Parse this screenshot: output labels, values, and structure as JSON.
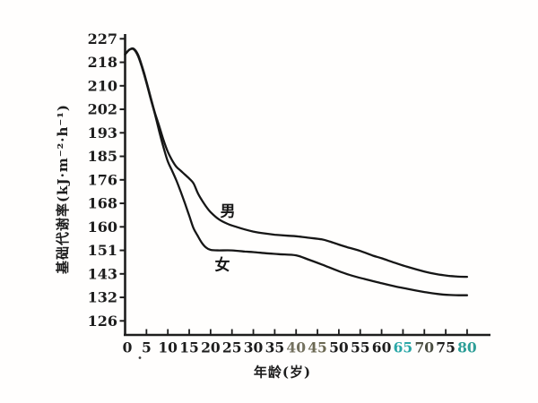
{
  "figure": {
    "background": "#fffefd",
    "ink": "#1d1d1d",
    "curve_color": "#161616"
  },
  "chart_data": {
    "type": "line",
    "title": "",
    "xlabel": "年龄(岁)",
    "ylabel": "基础代谢率(kJ·m⁻²·h⁻¹)",
    "x_ticks": [
      0,
      5,
      10,
      15,
      20,
      25,
      30,
      35,
      40,
      45,
      50,
      55,
      60,
      65,
      70,
      75,
      80
    ],
    "y_ticks": [
      227,
      218,
      210,
      202,
      193,
      185,
      176,
      168,
      160,
      151,
      143,
      132,
      126
    ],
    "xlim": [
      0,
      85
    ],
    "grid": false,
    "legend_position": "inline-curve-labels",
    "axis_note": "y tick values are unevenly spaced in value but evenly spaced along the axis (scanned textbook figure)",
    "x_tick_colors": {
      "40": "#73705e",
      "45": "#6b6852",
      "65": "#2aa7a7",
      "70": "#4c4f43",
      "80": "#2d9e97"
    },
    "series": [
      {
        "name": "男",
        "ages": [
          0,
          1,
          2,
          3,
          4,
          5,
          6,
          7,
          8,
          9,
          10,
          11,
          12,
          13,
          14,
          15,
          16,
          17,
          18,
          19,
          20,
          22,
          24,
          26,
          28,
          30,
          32,
          35,
          38,
          40,
          43,
          46,
          48,
          50,
          52,
          55,
          58,
          60,
          63,
          66,
          70,
          73,
          76,
          78,
          80
        ],
        "values": [
          221,
          222.8,
          223.2,
          221,
          216.5,
          211.5,
          206,
          200.5,
          195.5,
          190.5,
          186.5,
          183.5,
          181,
          179.5,
          178,
          176.5,
          174.8,
          171.5,
          169,
          166.8,
          165,
          162.5,
          161,
          160,
          159,
          158.2,
          157.6,
          157,
          156.6,
          156.4,
          155.8,
          155.2,
          154.3,
          153.2,
          152.2,
          150.8,
          149.2,
          148.3,
          146.8,
          145.4,
          143.8,
          142.8,
          142,
          141.7,
          141.6
        ]
      },
      {
        "name": "女",
        "ages": [
          0,
          1,
          2,
          3,
          4,
          5,
          6,
          7,
          8,
          9,
          10,
          11,
          12,
          13,
          14,
          15,
          16,
          17,
          18,
          19,
          20,
          22,
          25,
          28,
          30,
          33,
          36,
          40,
          43,
          46,
          50,
          53,
          56,
          60,
          63,
          66,
          70,
          73,
          76,
          78,
          80
        ],
        "values": [
          221,
          222.8,
          223,
          220.5,
          216,
          211,
          205.5,
          200,
          193.5,
          188,
          183,
          179.5,
          175.8,
          172,
          168,
          163.8,
          159.5,
          156.5,
          153.8,
          152,
          151.2,
          151,
          151,
          150.6,
          150.4,
          150,
          149.7,
          149.3,
          147.8,
          146.2,
          143.9,
          142.2,
          140.6,
          138.6,
          137.2,
          136,
          134.5,
          133.6,
          133.1,
          133,
          133
        ]
      }
    ]
  }
}
